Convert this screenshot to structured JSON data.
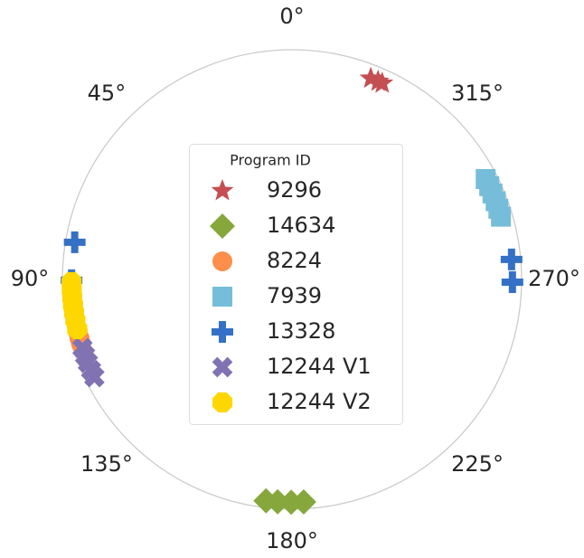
{
  "chart_data": {
    "type": "polar-scatter",
    "theta_direction": "counterclockwise",
    "theta_zero": "top",
    "thetaticks": [
      {
        "value": 0,
        "label": "0°"
      },
      {
        "value": 45,
        "label": "45°"
      },
      {
        "value": 90,
        "label": "90°"
      },
      {
        "value": 135,
        "label": "135°"
      },
      {
        "value": 180,
        "label": "180°"
      },
      {
        "value": 225,
        "label": "225°"
      },
      {
        "value": 270,
        "label": "270°"
      },
      {
        "value": 315,
        "label": "315°"
      }
    ],
    "rlim": [
      0,
      1
    ],
    "legend_title": "Program ID",
    "legend": "center",
    "series": [
      {
        "name": "9296",
        "marker": "star",
        "color": "#c44e52",
        "theta": [
          338.6,
          336.5,
          335.3
        ],
        "r": [
          0.94,
          0.94,
          0.94
        ]
      },
      {
        "name": "14634",
        "marker": "diamond",
        "color": "#85a73c",
        "theta": [
          173.3,
          176.3,
          179.8,
          183.0
        ],
        "r": [
          0.97,
          0.97,
          0.97,
          0.97
        ]
      },
      {
        "name": "8224",
        "marker": "circle",
        "color": "#fd8e4b",
        "theta": [
          103.5,
          105.4,
          107.0
        ],
        "r": [
          0.96,
          0.96,
          0.96
        ]
      },
      {
        "name": "7939",
        "marker": "square",
        "color": "#76bdd9",
        "theta": [
          297.4,
          295.3,
          293.2,
          291.0,
          288.9,
          286.7
        ],
        "r": [
          0.95,
          0.95,
          0.95,
          0.95,
          0.95,
          0.95
        ]
      },
      {
        "name": "13328",
        "marker": "plus",
        "color": "#3471c6",
        "theta": [
          80.3,
          90.2,
          275.2,
          269.3
        ],
        "r": [
          0.96,
          0.96,
          0.96,
          0.96
        ]
      },
      {
        "name": "12244 V1",
        "marker": "x",
        "color": "#8172b2",
        "theta": [
          108.1,
          110.2,
          112.2,
          114.3,
          116.3
        ],
        "r": [
          0.96,
          0.96,
          0.96,
          0.96,
          0.96
        ]
      },
      {
        "name": "12244 V2",
        "marker": "octagon",
        "color": "#ffd700",
        "theta": [
          90.7,
          92.7,
          94.7,
          96.7,
          98.7,
          100.7,
          103.0
        ],
        "r": [
          0.96,
          0.96,
          0.96,
          0.96,
          0.96,
          0.96,
          0.96
        ]
      }
    ]
  }
}
